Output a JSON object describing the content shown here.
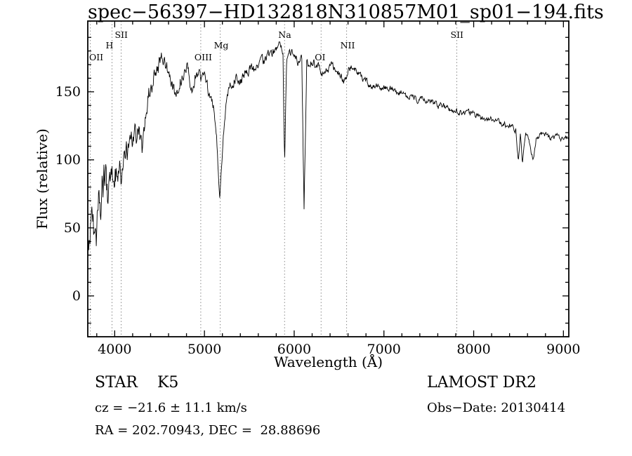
{
  "chart_data": {
    "type": "line",
    "title": "spec−56397−HD132818N310857M01_sp01−194.fits",
    "xlabel": "Wavelength (Å)",
    "ylabel": "Flux (relative)",
    "xlim": [
      3700,
      9060
    ],
    "ylim": [
      -30,
      202
    ],
    "xticks": [
      4000,
      5000,
      6000,
      7000,
      8000,
      9000
    ],
    "yticks": [
      0,
      50,
      100,
      150
    ],
    "minor_x_step": 200,
    "minor_y_step": 10,
    "grid": false,
    "legend": "none",
    "line_color": "#000000",
    "marker_line_color": "#8a8a8a",
    "background": "#ffffff",
    "seed": 20130414,
    "sample_step": 5,
    "markers": [
      {
        "label": "OII",
        "wavelength": 3727,
        "tier": 3
      },
      {
        "label": "H",
        "wavelength": 3970,
        "tier": 2
      },
      {
        "label": "SII",
        "wavelength": 4072,
        "tier": 1
      },
      {
        "label": "OIII",
        "wavelength": 4959,
        "tier": 3
      },
      {
        "label": "Mg",
        "wavelength": 5176,
        "tier": 2
      },
      {
        "label": "Na",
        "wavelength": 5893,
        "tier": 1
      },
      {
        "label": "OI",
        "wavelength": 6300,
        "tier": 3
      },
      {
        "label": "NII",
        "wavelength": 6584,
        "tier": 2
      },
      {
        "label": "SII",
        "wavelength": 7812,
        "tier": 1
      }
    ],
    "envelope": [
      [
        3700,
        25
      ],
      [
        3740,
        45
      ],
      [
        3780,
        32
      ],
      [
        3820,
        55
      ],
      [
        3860,
        70
      ],
      [
        3900,
        85
      ],
      [
        3933,
        75
      ],
      [
        3960,
        90
      ],
      [
        4000,
        92
      ],
      [
        4045,
        97
      ],
      [
        4080,
        88
      ],
      [
        4120,
        100
      ],
      [
        4160,
        106
      ],
      [
        4200,
        112
      ],
      [
        4240,
        118
      ],
      [
        4280,
        117
      ],
      [
        4310,
        106
      ],
      [
        4340,
        132
      ],
      [
        4380,
        148
      ],
      [
        4420,
        155
      ],
      [
        4460,
        166
      ],
      [
        4500,
        170
      ],
      [
        4540,
        173
      ],
      [
        4570,
        168
      ],
      [
        4600,
        165
      ],
      [
        4640,
        156
      ],
      [
        4690,
        148
      ],
      [
        4730,
        158
      ],
      [
        4770,
        163
      ],
      [
        4810,
        166
      ],
      [
        4845,
        157
      ],
      [
        4861,
        149
      ],
      [
        4900,
        162
      ],
      [
        4950,
        162
      ],
      [
        5000,
        158
      ],
      [
        5050,
        150
      ],
      [
        5100,
        141
      ],
      [
        5145,
        108
      ],
      [
        5172,
        72
      ],
      [
        5210,
        116
      ],
      [
        5255,
        149
      ],
      [
        5300,
        156
      ],
      [
        5350,
        160
      ],
      [
        5400,
        157
      ],
      [
        5450,
        163
      ],
      [
        5500,
        167
      ],
      [
        5550,
        166
      ],
      [
        5600,
        170
      ],
      [
        5650,
        172
      ],
      [
        5700,
        175
      ],
      [
        5750,
        178
      ],
      [
        5800,
        181
      ],
      [
        5845,
        184
      ],
      [
        5875,
        176
      ],
      [
        5893,
        96
      ],
      [
        5915,
        172
      ],
      [
        5950,
        180
      ],
      [
        6000,
        179
      ],
      [
        6050,
        172
      ],
      [
        6085,
        173
      ],
      [
        6110,
        62
      ],
      [
        6140,
        170
      ],
      [
        6200,
        173
      ],
      [
        6250,
        169
      ],
      [
        6300,
        164
      ],
      [
        6350,
        167
      ],
      [
        6400,
        169
      ],
      [
        6450,
        166
      ],
      [
        6500,
        163
      ],
      [
        6563,
        156
      ],
      [
        6600,
        166
      ],
      [
        6650,
        170
      ],
      [
        6700,
        166
      ],
      [
        6750,
        161
      ],
      [
        6800,
        158
      ],
      [
        6870,
        152
      ],
      [
        6920,
        155
      ],
      [
        7000,
        153
      ],
      [
        7100,
        151
      ],
      [
        7200,
        149
      ],
      [
        7300,
        146
      ],
      [
        7400,
        144
      ],
      [
        7500,
        143
      ],
      [
        7600,
        139
      ],
      [
        7700,
        138
      ],
      [
        7800,
        136
      ],
      [
        7900,
        135
      ],
      [
        8000,
        133
      ],
      [
        8100,
        130
      ],
      [
        8200,
        129
      ],
      [
        8300,
        127
      ],
      [
        8400,
        125
      ],
      [
        8470,
        122
      ],
      [
        8498,
        101
      ],
      [
        8520,
        119
      ],
      [
        8542,
        98
      ],
      [
        8580,
        117
      ],
      [
        8620,
        112
      ],
      [
        8662,
        100
      ],
      [
        8700,
        117
      ],
      [
        8750,
        119
      ],
      [
        8800,
        118
      ],
      [
        8900,
        117
      ],
      [
        9000,
        116
      ],
      [
        9060,
        115
      ]
    ],
    "noise_profile": [
      [
        3700,
        30
      ],
      [
        3900,
        26
      ],
      [
        4000,
        18
      ],
      [
        4150,
        14
      ],
      [
        4350,
        11
      ],
      [
        4600,
        8
      ],
      [
        5000,
        6.5
      ],
      [
        5500,
        5.5
      ],
      [
        6000,
        5
      ],
      [
        6500,
        4.5
      ],
      [
        7000,
        4
      ],
      [
        7600,
        3.5
      ],
      [
        9060,
        3.2
      ]
    ]
  },
  "footer": {
    "class_line": "STAR    K5",
    "survey": "LAMOST DR2",
    "cz_line": "cz = −21.6 ± 11.1 km/s",
    "obs_date_line": "Obs−Date: 20130414",
    "radec_line": "RA = 202.70943, DEC =  28.88696"
  }
}
